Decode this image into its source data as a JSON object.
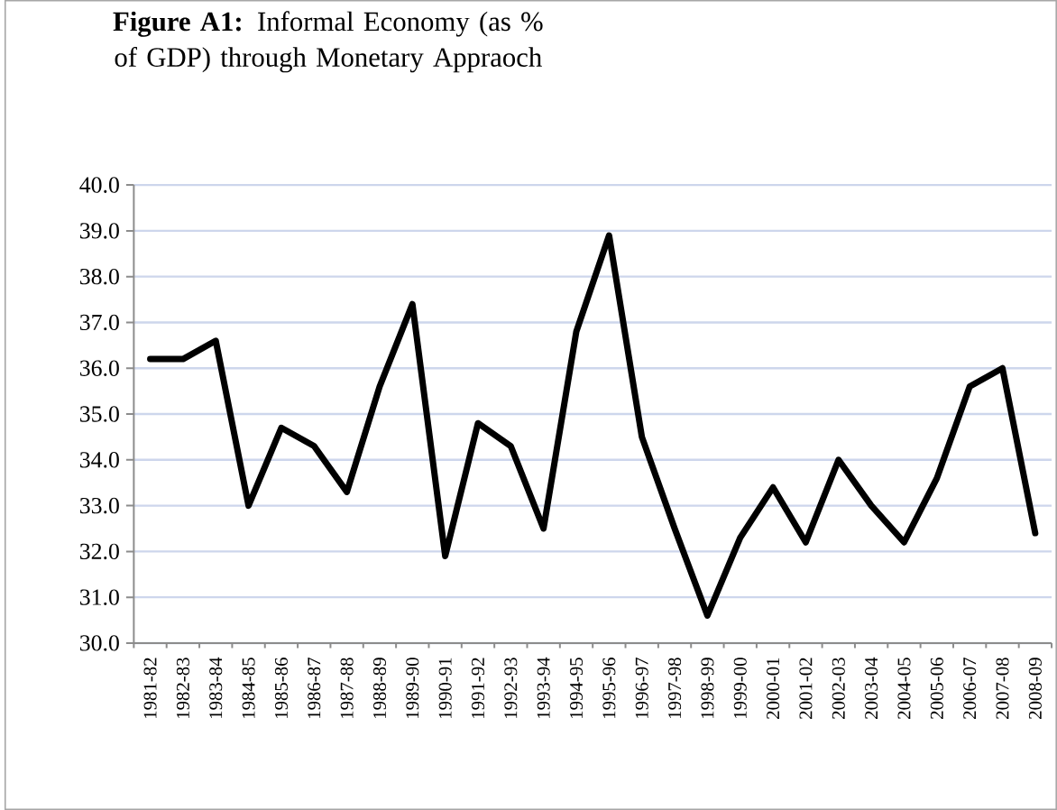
{
  "chart_data": {
    "type": "line",
    "title": "**Figure A1:** Informal Economy (as % of GDP) through Monetary Appraoch",
    "categories": [
      "1981-82",
      "1982-83",
      "1983-84",
      "1984-85",
      "1985-86",
      "1986-87",
      "1987-88",
      "1988-89",
      "1989-90",
      "1990-91",
      "1991-92",
      "1992-93",
      "1993-94",
      "1994-95",
      "1995-96",
      "1996-97",
      "1997-98",
      "1998-99",
      "1999-00",
      "2000-01",
      "2001-02",
      "2002-03",
      "2003-04",
      "2004-05",
      "2005-06",
      "2006-07",
      "2007-08",
      "2008-09"
    ],
    "values": [
      36.2,
      36.2,
      36.6,
      33.0,
      34.7,
      34.3,
      33.3,
      35.6,
      37.4,
      31.9,
      34.8,
      34.3,
      32.5,
      36.8,
      38.9,
      34.5,
      32.5,
      30.6,
      32.3,
      33.4,
      32.2,
      34.0,
      33.0,
      32.2,
      33.6,
      35.6,
      36.0,
      32.4
    ],
    "color": "#000000",
    "ylim": [
      30,
      40
    ],
    "yticks": [
      {
        "value": 30,
        "label": "30.0"
      },
      {
        "value": 31,
        "label": "31.0"
      },
      {
        "value": 32,
        "label": "32.0"
      },
      {
        "value": 33,
        "label": "33.0"
      },
      {
        "value": 34,
        "label": "34.0"
      },
      {
        "value": 35,
        "label": "35.0"
      },
      {
        "value": 36,
        "label": "36.0"
      },
      {
        "value": 37,
        "label": "37.0"
      },
      {
        "value": 38,
        "label": "38.0"
      },
      {
        "value": 39,
        "label": "39.0"
      },
      {
        "value": 40,
        "label": "40.0"
      }
    ],
    "grid": "y",
    "marker": "none",
    "line_style": "solid"
  }
}
